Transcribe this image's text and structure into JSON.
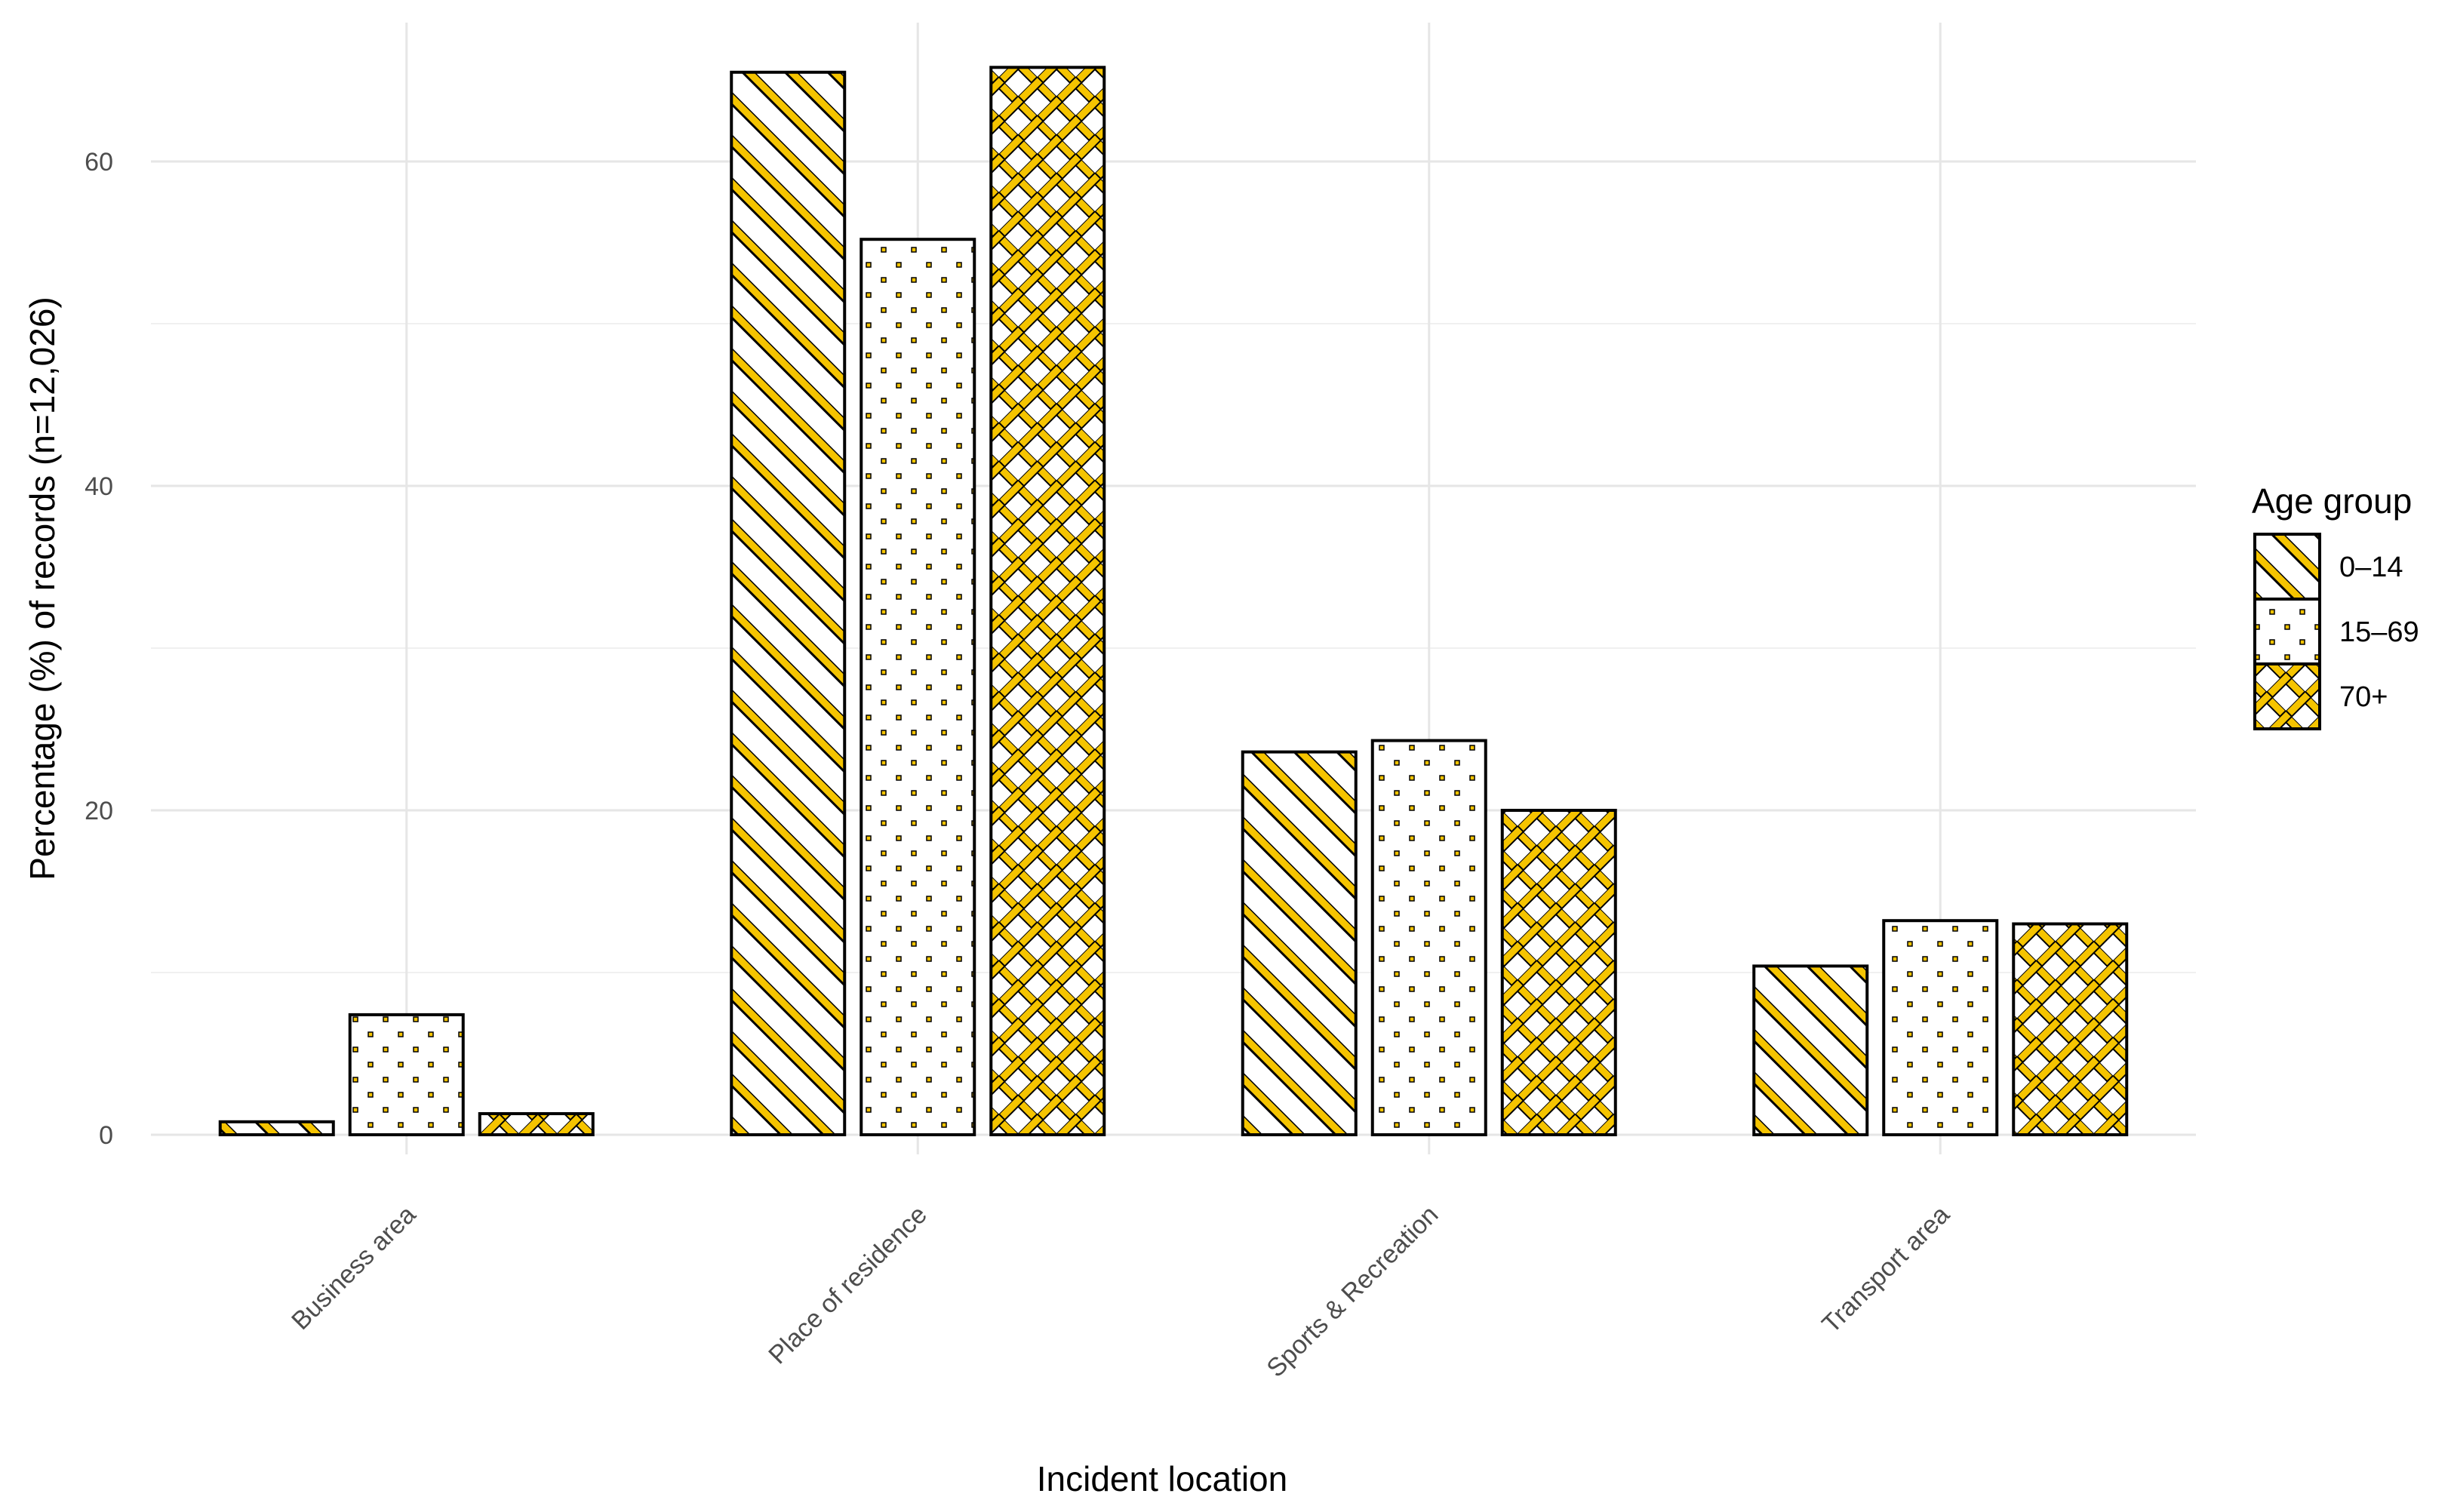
{
  "chart_data": {
    "type": "bar",
    "title": "",
    "xlabel": "Incident location",
    "ylabel": "Percentage (%) of records (n=12,026)",
    "categories": [
      "Business area",
      "Place of residence",
      "Sports & Recreation",
      "Transport area"
    ],
    "series": [
      {
        "name": "0–14",
        "pattern": "stripe",
        "values": [
          0.8,
          65.5,
          23.6,
          10.4
        ]
      },
      {
        "name": "15–69",
        "pattern": "dots",
        "values": [
          7.4,
          55.2,
          24.3,
          13.2
        ]
      },
      {
        "name": "70+",
        "pattern": "crosshatch",
        "values": [
          1.3,
          65.8,
          20.0,
          13.0
        ]
      }
    ],
    "ylim": [
      0,
      68
    ],
    "yticks": [
      0,
      20,
      40,
      60
    ],
    "grid": true,
    "legend": {
      "title": "Age group",
      "position": "right"
    },
    "colors": {
      "pattern": "#f5c400",
      "outline": "#000000",
      "grid": "#e6e6e6",
      "background": "#ffffff"
    }
  }
}
